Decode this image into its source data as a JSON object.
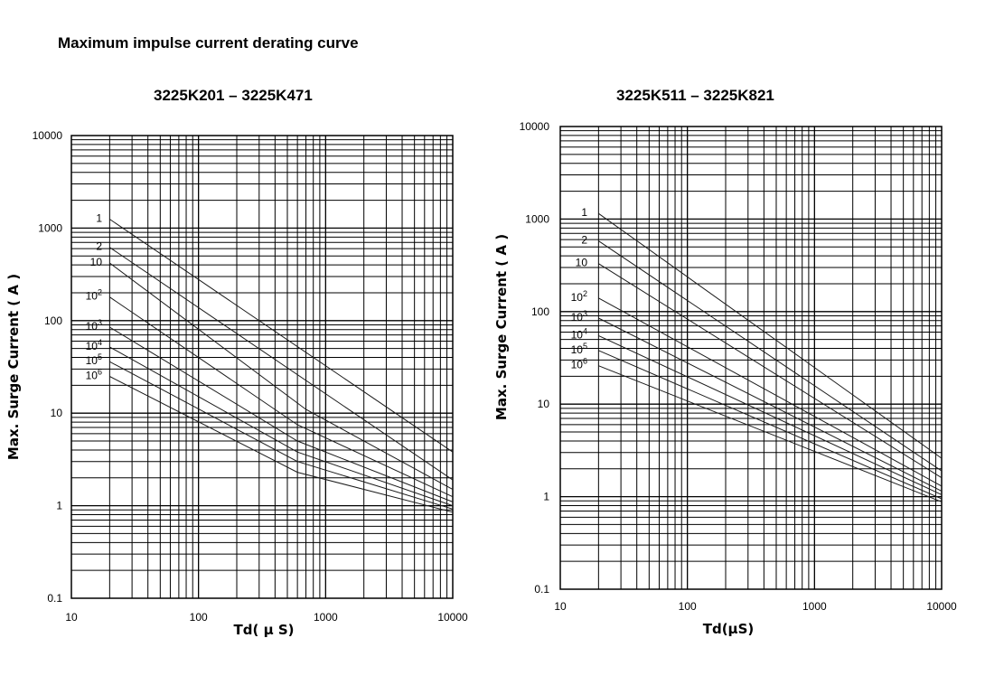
{
  "page": {
    "heading": "Maximum impulse current derating curve"
  },
  "chart_data": [
    {
      "type": "line",
      "title": "3225K201 – 3225K471",
      "xlabel": "Td( μ S)",
      "ylabel": "Max.  Surge  Current  ( A )",
      "xscale": "log",
      "yscale": "log",
      "xlim": [
        10,
        10000
      ],
      "ylim": [
        0.1,
        10000
      ],
      "x_tick_labels": [
        "10",
        "100",
        "1000",
        "10000"
      ],
      "y_tick_labels": [
        "0.1",
        "1",
        "10",
        "100",
        "1000",
        "10000"
      ],
      "grid": true,
      "series": [
        {
          "name": "1",
          "label_base": "1",
          "label_exp": "",
          "points": [
            [
              20,
              1250
            ],
            [
              10000,
              3.8
            ]
          ]
        },
        {
          "name": "2",
          "label_base": "2",
          "label_exp": "",
          "points": [
            [
              20,
              620
            ],
            [
              10000,
              1.9
            ]
          ]
        },
        {
          "name": "10",
          "label_base": "10",
          "label_exp": "",
          "points": [
            [
              20,
              420
            ],
            [
              700,
              11
            ],
            [
              10000,
              1.5
            ]
          ]
        },
        {
          "name": "10^2",
          "label_base": "10",
          "label_exp": "2",
          "points": [
            [
              20,
              180
            ],
            [
              600,
              7.5
            ],
            [
              10000,
              1.25
            ]
          ]
        },
        {
          "name": "10^3",
          "label_base": "10",
          "label_exp": "3",
          "points": [
            [
              20,
              85
            ],
            [
              600,
              5
            ],
            [
              10000,
              1.1
            ]
          ]
        },
        {
          "name": "10^4",
          "label_base": "10",
          "label_exp": "4",
          "points": [
            [
              20,
              52
            ],
            [
              600,
              3.8
            ],
            [
              10000,
              1.0
            ]
          ]
        },
        {
          "name": "10^5",
          "label_base": "10",
          "label_exp": "5",
          "points": [
            [
              20,
              36
            ],
            [
              600,
              3.0
            ],
            [
              10000,
              0.92
            ]
          ]
        },
        {
          "name": "10^6",
          "label_base": "10",
          "label_exp": "6",
          "points": [
            [
              20,
              25
            ],
            [
              600,
              2.3
            ],
            [
              10000,
              0.85
            ]
          ]
        }
      ]
    },
    {
      "type": "line",
      "title": "3225K511 – 3225K821",
      "xlabel": "Td(μS)",
      "ylabel": "Max.  Surge  Current  ( A )",
      "xscale": "log",
      "yscale": "log",
      "xlim": [
        10,
        10000
      ],
      "ylim": [
        0.1,
        10000
      ],
      "x_tick_labels": [
        "10",
        "100",
        "1000",
        "10000"
      ],
      "y_tick_labels": [
        "0.1",
        "1",
        "10",
        "100",
        "1000",
        "10000"
      ],
      "grid": true,
      "series": [
        {
          "name": "1",
          "label_base": "1",
          "label_exp": "",
          "points": [
            [
              20,
              1150
            ],
            [
              10000,
              2.6
            ]
          ]
        },
        {
          "name": "2",
          "label_base": "2",
          "label_exp": "",
          "points": [
            [
              20,
              580
            ],
            [
              10000,
              1.9
            ]
          ]
        },
        {
          "name": "10",
          "label_base": "10",
          "label_exp": "",
          "points": [
            [
              20,
              330
            ],
            [
              10000,
              1.6
            ]
          ]
        },
        {
          "name": "10^2",
          "label_base": "10",
          "label_exp": "2",
          "points": [
            [
              20,
              140
            ],
            [
              10000,
              1.3
            ]
          ]
        },
        {
          "name": "10^3",
          "label_base": "10",
          "label_exp": "3",
          "points": [
            [
              20,
              85
            ],
            [
              10000,
              1.15
            ]
          ]
        },
        {
          "name": "10^4",
          "label_base": "10",
          "label_exp": "4",
          "points": [
            [
              20,
              55
            ],
            [
              10000,
              1.05
            ]
          ]
        },
        {
          "name": "10^5",
          "label_base": "10",
          "label_exp": "5",
          "points": [
            [
              20,
              38
            ],
            [
              10000,
              0.95
            ]
          ]
        },
        {
          "name": "10^6",
          "label_base": "10",
          "label_exp": "6",
          "points": [
            [
              20,
              26
            ],
            [
              10000,
              0.88
            ]
          ]
        }
      ]
    }
  ]
}
